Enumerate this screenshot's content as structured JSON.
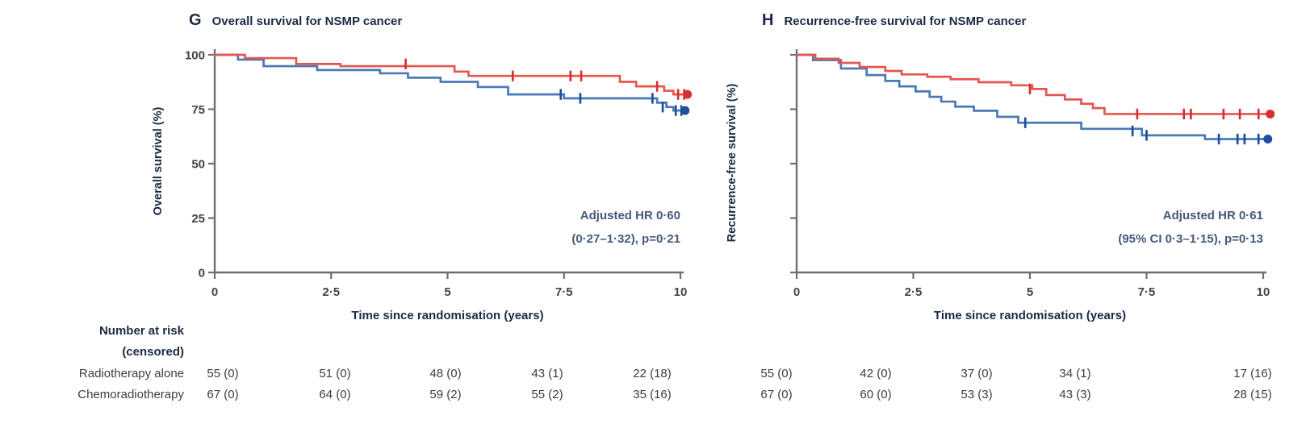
{
  "figure": {
    "panels": [
      {
        "letter": "G",
        "title": "Overall survival for NSMP cancer",
        "ylabel": "Overall survival (%)",
        "xlabel": "Time since randomisation (years)",
        "annotation": {
          "line1": "Adjusted HR 0·60",
          "line2": "(0·27–1·32), p=0·21"
        }
      },
      {
        "letter": "H",
        "title": "Recurrence-free survival for NSMP cancer",
        "ylabel": "Recurrence-free survival (%)",
        "xlabel": "Time since randomisation (years)",
        "annotation": {
          "line1": "Adjusted HR 0·61",
          "line2": "(95% CI 0·3–1·15), p=0·13"
        }
      }
    ]
  },
  "chart_data": [
    {
      "panel": "G",
      "type": "line",
      "subtype": "kaplan-meier-step",
      "title": "Overall survival for NSMP cancer",
      "xlabel": "Time since randomisation (years)",
      "ylabel": "Overall survival (%)",
      "xlim": [
        0,
        10
      ],
      "ylim": [
        0,
        100
      ],
      "grid": false,
      "legend": "none",
      "xtick_values": [
        0,
        2.5,
        5,
        7.5,
        10
      ],
      "xtick_labels": [
        "0",
        "2·5",
        "5",
        "7·5",
        "10"
      ],
      "ytick_values": [
        100,
        75,
        50,
        25,
        0
      ],
      "ytick_labels": [
        "100",
        "75",
        "50",
        "25",
        "0"
      ],
      "annotation": [
        "Adjusted HR 0·60",
        "(0·27–1·32), p=0·21"
      ],
      "series": [
        {
          "name": "blue",
          "color": "#4a79b6",
          "marker_color": "#1f4e9c",
          "steps": [
            [
              0,
              100
            ],
            [
              0.5,
              97.8
            ],
            [
              1.05,
              94.8
            ],
            [
              2.2,
              93
            ],
            [
              3.55,
              91.5
            ],
            [
              4.15,
              89.5
            ],
            [
              4.85,
              87.6
            ],
            [
              5.65,
              85.2
            ],
            [
              6.3,
              81.8
            ],
            [
              7.5,
              80
            ],
            [
              9.5,
              78
            ],
            [
              9.7,
              76
            ],
            [
              9.85,
              74.4
            ],
            [
              10.1,
              74.4
            ]
          ],
          "censor_marks": [
            [
              7.43,
              81.8
            ],
            [
              7.85,
              80
            ],
            [
              9.4,
              80
            ],
            [
              9.62,
              76
            ],
            [
              9.9,
              74.4
            ],
            [
              10.02,
              74.4
            ]
          ],
          "end_marker": true
        },
        {
          "name": "red",
          "color": "#e4574f",
          "marker_color": "#d62f30",
          "steps": [
            [
              0,
              100
            ],
            [
              0.65,
              98.5
            ],
            [
              1.75,
              95.8
            ],
            [
              2.7,
              94.8
            ],
            [
              5.15,
              92.3
            ],
            [
              5.45,
              90.3
            ],
            [
              8.7,
              87.6
            ],
            [
              9.05,
              85.5
            ],
            [
              9.65,
              83.5
            ],
            [
              9.85,
              81.8
            ],
            [
              10.15,
              81.8
            ]
          ],
          "censor_marks": [
            [
              4.1,
              95.8
            ],
            [
              6.4,
              90.3
            ],
            [
              7.64,
              90.3
            ],
            [
              7.87,
              90.3
            ],
            [
              9.5,
              85.5
            ],
            [
              9.95,
              81.8
            ],
            [
              10.08,
              81.8
            ]
          ],
          "end_marker": true
        }
      ]
    },
    {
      "panel": "H",
      "type": "line",
      "subtype": "kaplan-meier-step",
      "title": "Recurrence-free survival for NSMP cancer",
      "xlabel": "Time since randomisation (years)",
      "ylabel": "Recurrence-free survival (%)",
      "xlim": [
        0,
        10
      ],
      "ylim": [
        0,
        100
      ],
      "grid": false,
      "legend": "none",
      "xtick_values": [
        0,
        2.5,
        5,
        7.5,
        10
      ],
      "xtick_labels": [
        "0",
        "2·5",
        "5",
        "7·5",
        "10"
      ],
      "ytick_values": [
        100,
        75,
        50,
        25,
        0
      ],
      "ytick_labels": [],
      "annotation": [
        "Adjusted HR 0·61",
        "(95% CI 0·3–1·15), p=0·13"
      ],
      "series": [
        {
          "name": "blue",
          "color": "#4a79b6",
          "marker_color": "#1f4e9c",
          "steps": [
            [
              0,
              100
            ],
            [
              0.35,
              97.6
            ],
            [
              0.95,
              93.7
            ],
            [
              1.5,
              90.7
            ],
            [
              1.9,
              88
            ],
            [
              2.2,
              85.5
            ],
            [
              2.55,
              83.2
            ],
            [
              2.85,
              80.7
            ],
            [
              3.1,
              78.5
            ],
            [
              3.4,
              76.2
            ],
            [
              3.8,
              74.3
            ],
            [
              4.3,
              71.5
            ],
            [
              4.75,
              68.8
            ],
            [
              6.1,
              66
            ],
            [
              7.4,
              63
            ],
            [
              8.75,
              61.3
            ],
            [
              10.1,
              61.3
            ]
          ],
          "censor_marks": [
            [
              4.9,
              68.8
            ],
            [
              7.2,
              65
            ],
            [
              7.5,
              63
            ],
            [
              9.05,
              61.3
            ],
            [
              9.45,
              61.3
            ],
            [
              9.6,
              61.3
            ],
            [
              9.9,
              61.3
            ]
          ],
          "end_marker": true
        },
        {
          "name": "red",
          "color": "#e4574f",
          "marker_color": "#d62f30",
          "steps": [
            [
              0,
              100
            ],
            [
              0.4,
              98.2
            ],
            [
              0.9,
              96.3
            ],
            [
              1.35,
              94.4
            ],
            [
              1.9,
              92.6
            ],
            [
              2.25,
              91
            ],
            [
              2.8,
              89.9
            ],
            [
              3.3,
              88.8
            ],
            [
              3.9,
              87.4
            ],
            [
              4.6,
              86
            ],
            [
              5.05,
              84.3
            ],
            [
              5.35,
              81.5
            ],
            [
              5.75,
              79.5
            ],
            [
              6.1,
              77.5
            ],
            [
              6.35,
              75.5
            ],
            [
              6.6,
              72.8
            ],
            [
              10.15,
              72.8
            ]
          ],
          "censor_marks": [
            [
              5.0,
              84.3
            ],
            [
              7.3,
              72.8
            ],
            [
              8.3,
              72.8
            ],
            [
              8.45,
              72.8
            ],
            [
              9.15,
              72.8
            ],
            [
              9.5,
              72.8
            ],
            [
              9.9,
              72.8
            ]
          ],
          "end_marker": true
        }
      ]
    }
  ],
  "risk_table": {
    "header_line1": "Number at risk",
    "header_line2": "(censored)",
    "rows": [
      {
        "label": "Radiotherapy alone",
        "panel_g": [
          "55 (0)",
          "51 (0)",
          "48 (0)",
          "43 (1)",
          "22 (18)"
        ],
        "panel_h": [
          "55 (0)",
          "42 (0)",
          "37 (0)",
          "34 (1)",
          "17 (16)"
        ]
      },
      {
        "label": "Chemoradiotherapy",
        "panel_g": [
          "67 (0)",
          "64 (0)",
          "59 (2)",
          "55 (2)",
          "35 (16)"
        ],
        "panel_h": [
          "67 (0)",
          "60 (0)",
          "53 (3)",
          "43 (3)",
          "28 (15)"
        ]
      }
    ]
  },
  "colors": {
    "curve_red": "#e4574f",
    "curve_red_censor": "#d62f30",
    "curve_blue": "#4a79b6",
    "curve_blue_censor": "#1f4e9c",
    "axis": "#6f6f72",
    "heading_text": "#1c2a45",
    "tick_text": "#41434c",
    "annotation_text": "#46587c"
  }
}
